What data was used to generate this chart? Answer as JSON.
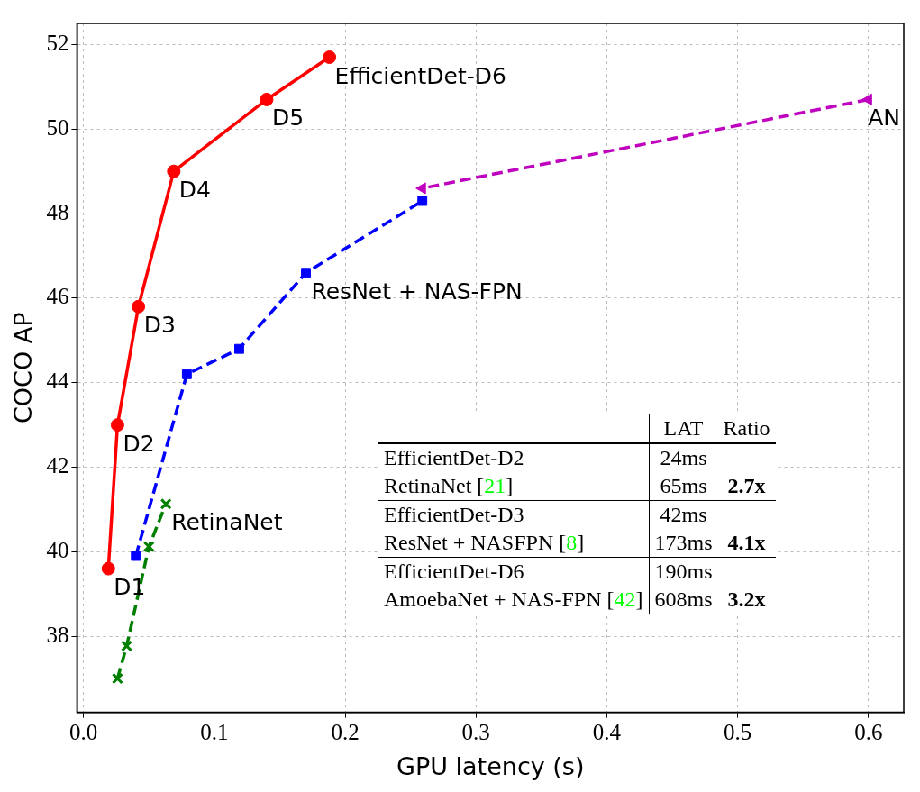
{
  "chart_data": {
    "type": "line",
    "xlabel": "GPU latency (s)",
    "ylabel": "COCO AP",
    "xlim": [
      -0.005,
      0.627
    ],
    "ylim": [
      36.2,
      52.5
    ],
    "xticks": [
      {
        "value": 0,
        "label": "0.0"
      },
      {
        "value": 0.1,
        "label": "0.1"
      },
      {
        "value": 0.2,
        "label": "0.2"
      },
      {
        "value": 0.3,
        "label": "0.3"
      },
      {
        "value": 0.4,
        "label": "0.4"
      },
      {
        "value": 0.5,
        "label": "0.5"
      },
      {
        "value": 0.6,
        "label": "0.6"
      }
    ],
    "yticks": [
      38,
      40,
      42,
      44,
      46,
      48,
      50,
      52
    ],
    "grid": true,
    "legend": false,
    "series": [
      {
        "color": "#ff0000",
        "marker": "circle",
        "line_style": "solid",
        "x": [
          0.019,
          0.026,
          0.042,
          0.069,
          0.14,
          0.188
        ],
        "values": [
          39.6,
          43.0,
          45.8,
          49.0,
          50.7,
          51.7
        ]
      },
      {
        "color": "#0000ff",
        "marker": "square",
        "line_style": "dashed",
        "x": [
          0.04,
          0.079,
          0.119,
          0.17,
          0.259
        ],
        "values": [
          39.9,
          44.2,
          44.8,
          46.6,
          48.3
        ]
      },
      {
        "color": "#bf00bf",
        "marker": "triangle",
        "line_style": "dashed",
        "x": [
          0.6,
          0.259
        ],
        "values": [
          50.7,
          48.6
        ]
      },
      {
        "color": "#007f00",
        "marker": "cross",
        "line_style": "dashed",
        "x": [
          0.026,
          0.033,
          0.05,
          0.063
        ],
        "values": [
          37.0,
          37.77,
          40.12,
          41.13
        ]
      }
    ],
    "annotations": [
      {
        "text": "D1",
        "x": 0.019,
        "y": 39.6
      },
      {
        "text": "D2",
        "x": 0.026,
        "y": 43.0
      },
      {
        "text": "D3",
        "x": 0.042,
        "y": 45.8
      },
      {
        "text": "D4",
        "x": 0.069,
        "y": 49.0
      },
      {
        "text": "D5",
        "x": 0.14,
        "y": 50.7
      },
      {
        "text": "EfficientDet-D6",
        "x": 0.188,
        "y": 51.7
      },
      {
        "text": "ResNet + NAS-FPN",
        "x": 0.17,
        "y": 46.6
      },
      {
        "text": "RetinaNet",
        "x": 0.063,
        "y": 41.13
      },
      {
        "text": "AN",
        "x": 0.6,
        "y": 50.7
      },
      "LAT",
      "Ratio",
      "EfficientDet-D2",
      "24ms",
      "RetinaNet [21]",
      "65ms",
      "2.7x",
      "EfficientDet-D3",
      "42ms",
      "ResNet + NASFPN [8]",
      "173ms",
      "4.1x",
      "EfficientDet-D6",
      "190ms",
      "AmoebaNet + NAS-FPN [42]",
      "608ms",
      "3.2x"
    ]
  }
}
